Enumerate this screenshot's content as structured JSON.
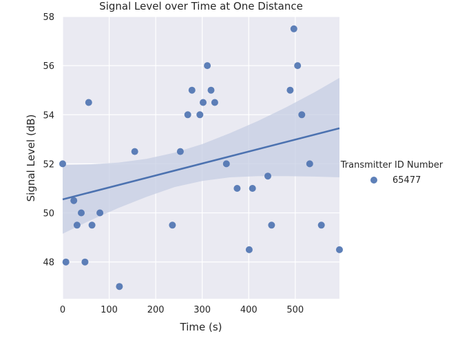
{
  "chart_data": {
    "type": "scatter",
    "title": "Signal Level over Time at One Distance",
    "xlabel": "Time (s)",
    "ylabel": "Signal Level (dB)",
    "xlim": [
      0,
      595
    ],
    "ylim": [
      46.5,
      58
    ],
    "xticks": [
      0,
      100,
      200,
      300,
      400,
      500
    ],
    "yticks": [
      48,
      50,
      52,
      54,
      56,
      58
    ],
    "grid": true,
    "background": "#eaeaf2",
    "legend": {
      "title": "Transmitter ID Number",
      "placement": "right",
      "entries": [
        "65477"
      ]
    },
    "series": [
      {
        "name": "65477",
        "color": "#4c72b0",
        "x": [
          0,
          7,
          24,
          31,
          40,
          48,
          56,
          63,
          80,
          122,
          155,
          236,
          253,
          269,
          278,
          295,
          302,
          311,
          319,
          327,
          352,
          375,
          401,
          408,
          441,
          449,
          489,
          497,
          505,
          514,
          531,
          556,
          595
        ],
        "y": [
          52,
          48,
          50.5,
          49.5,
          50,
          48,
          54.5,
          49.5,
          50,
          47,
          52.5,
          49.5,
          52.5,
          54,
          55,
          54,
          54.5,
          56,
          55,
          54.5,
          52,
          51,
          48.5,
          51,
          51.5,
          49.5,
          55,
          57.5,
          56,
          54,
          52,
          49.5,
          48.5
        ]
      }
    ],
    "regression": {
      "x": [
        0,
        595
      ],
      "y": [
        50.55,
        53.45
      ],
      "ci_upper": [
        [
          0,
          51.95
        ],
        [
          60,
          51.98
        ],
        [
          120,
          52.05
        ],
        [
          180,
          52.2
        ],
        [
          240,
          52.45
        ],
        [
          300,
          52.8
        ],
        [
          360,
          53.25
        ],
        [
          420,
          53.75
        ],
        [
          480,
          54.3
        ],
        [
          540,
          54.9
        ],
        [
          595,
          55.5
        ]
      ],
      "ci_lower": [
        [
          0,
          49.15
        ],
        [
          60,
          49.7
        ],
        [
          120,
          50.2
        ],
        [
          180,
          50.65
        ],
        [
          240,
          51.05
        ],
        [
          300,
          51.3
        ],
        [
          360,
          51.45
        ],
        [
          420,
          51.5
        ],
        [
          480,
          51.5
        ],
        [
          540,
          51.48
        ],
        [
          595,
          51.45
        ]
      ],
      "line_color": "#4c72b0",
      "band_color": "#c6cde3"
    }
  }
}
